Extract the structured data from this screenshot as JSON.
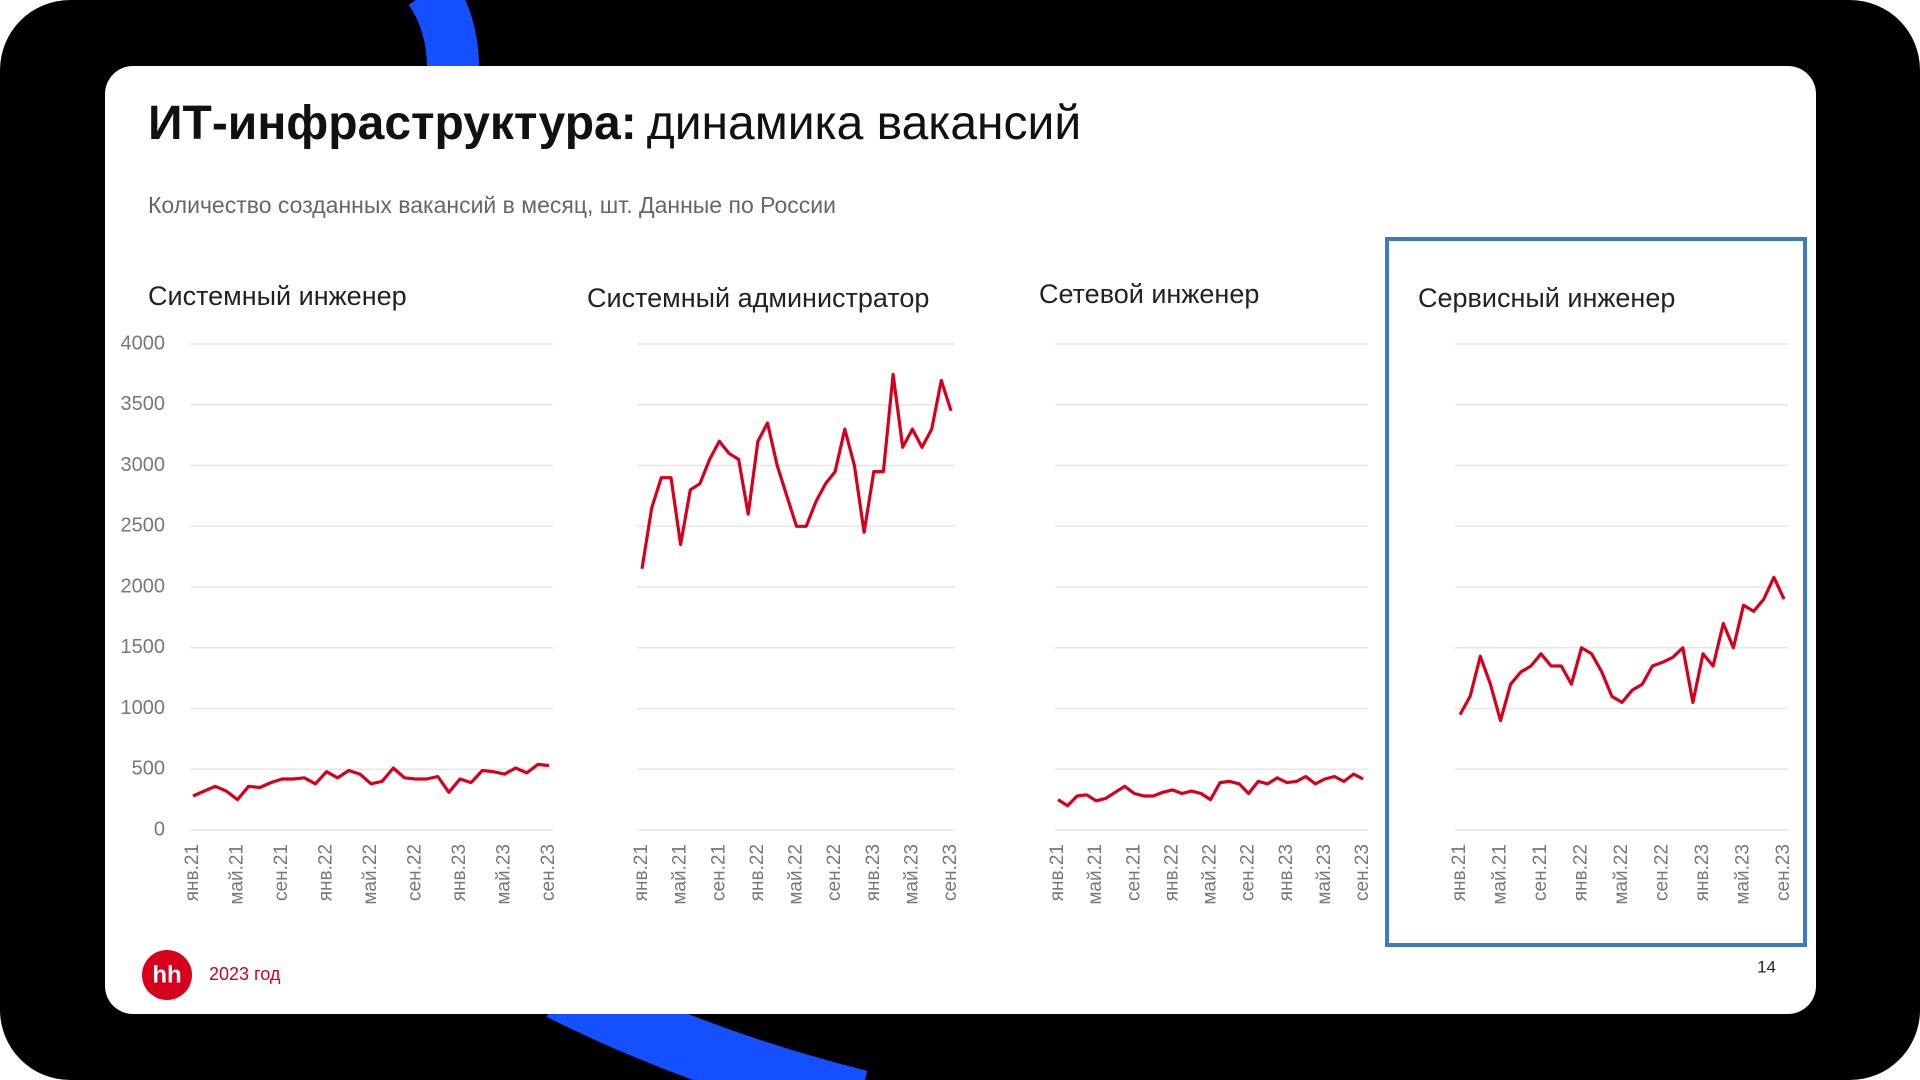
{
  "header": {
    "title_bold": "ИТ-инфраструктура:",
    "title_rest": "динамика вакансий",
    "subtitle": "Количество созданных вакансий в месяц, шт. Данные по России"
  },
  "footer": {
    "logo": "hh",
    "year": "2023 год",
    "page": "14"
  },
  "chart_data": [
    {
      "type": "line",
      "title": "Системный инженер",
      "color": "#d6001c",
      "ylim": [
        0,
        4000
      ],
      "yticks": [
        0,
        500,
        1000,
        1500,
        2000,
        2500,
        3000,
        3500,
        4000
      ],
      "ytick_labels": true,
      "grid": true,
      "categories": [
        "янв.21",
        null,
        null,
        null,
        "май.21",
        null,
        null,
        null,
        "сен.21",
        null,
        null,
        null,
        "янв.22",
        null,
        null,
        null,
        "май.22",
        null,
        null,
        null,
        "сен.22",
        null,
        null,
        null,
        "янв.23",
        null,
        null,
        null,
        "май.23",
        null,
        null,
        null,
        "сен.23"
      ],
      "values": [
        280,
        320,
        360,
        320,
        250,
        360,
        350,
        390,
        420,
        420,
        430,
        380,
        480,
        430,
        490,
        460,
        380,
        400,
        510,
        430,
        420,
        420,
        440,
        310,
        420,
        390,
        490,
        480,
        460,
        510,
        470,
        540,
        530
      ]
    },
    {
      "type": "line",
      "title": "Системный администратор",
      "color": "#d6001c",
      "ylim": [
        0,
        4000
      ],
      "yticks": [
        0,
        500,
        1000,
        1500,
        2000,
        2500,
        3000,
        3500,
        4000
      ],
      "ytick_labels": false,
      "grid": true,
      "categories": [
        "янв.21",
        null,
        null,
        null,
        "май.21",
        null,
        null,
        null,
        "сен.21",
        null,
        null,
        null,
        "янв.22",
        null,
        null,
        null,
        "май.22",
        null,
        null,
        null,
        "сен.22",
        null,
        null,
        null,
        "янв.23",
        null,
        null,
        null,
        "май.23",
        null,
        null,
        null,
        "сен.23"
      ],
      "values": [
        2150,
        2650,
        2900,
        2900,
        2350,
        2800,
        2850,
        3050,
        3200,
        3100,
        3050,
        2600,
        3200,
        3350,
        3000,
        2750,
        2500,
        2500,
        2700,
        2850,
        2950,
        3300,
        3000,
        2450,
        2950,
        2950,
        3750,
        3150,
        3300,
        3150,
        3300,
        3700,
        3450
      ]
    },
    {
      "type": "line",
      "title": "Сетевой инженер",
      "color": "#d6001c",
      "ylim": [
        0,
        4000
      ],
      "yticks": [
        0,
        500,
        1000,
        1500,
        2000,
        2500,
        3000,
        3500,
        4000
      ],
      "ytick_labels": false,
      "grid": true,
      "categories": [
        "янв.21",
        null,
        null,
        null,
        "май.21",
        null,
        null,
        null,
        "сен.21",
        null,
        null,
        null,
        "янв.22",
        null,
        null,
        null,
        "май.22",
        null,
        null,
        null,
        "сен.22",
        null,
        null,
        null,
        "янв.23",
        null,
        null,
        null,
        "май.23",
        null,
        null,
        null,
        "сен.23"
      ],
      "values": [
        250,
        200,
        280,
        290,
        240,
        260,
        310,
        360,
        300,
        280,
        280,
        310,
        330,
        300,
        320,
        300,
        250,
        390,
        400,
        380,
        300,
        400,
        380,
        430,
        390,
        400,
        440,
        380,
        420,
        440,
        400,
        460,
        420
      ]
    },
    {
      "type": "line",
      "title": "Сервисный инженер",
      "color": "#d6001c",
      "ylim": [
        0,
        4000
      ],
      "yticks": [
        0,
        500,
        1000,
        1500,
        2000,
        2500,
        3000,
        3500,
        4000
      ],
      "ytick_labels": false,
      "grid": true,
      "categories": [
        "янв.21",
        null,
        null,
        null,
        "май.21",
        null,
        null,
        null,
        "сен.21",
        null,
        null,
        null,
        "янв.22",
        null,
        null,
        null,
        "май.22",
        null,
        null,
        null,
        "сен.22",
        null,
        null,
        null,
        "янв.23",
        null,
        null,
        null,
        "май.23",
        null,
        null,
        null,
        "сен.23"
      ],
      "values": [
        950,
        1100,
        1430,
        1200,
        900,
        1200,
        1300,
        1350,
        1450,
        1350,
        1350,
        1200,
        1500,
        1450,
        1300,
        1100,
        1050,
        1150,
        1200,
        1350,
        1380,
        1420,
        1500,
        1050,
        1450,
        1350,
        1700,
        1500,
        1850,
        1800,
        1900,
        2080,
        1900
      ]
    }
  ]
}
